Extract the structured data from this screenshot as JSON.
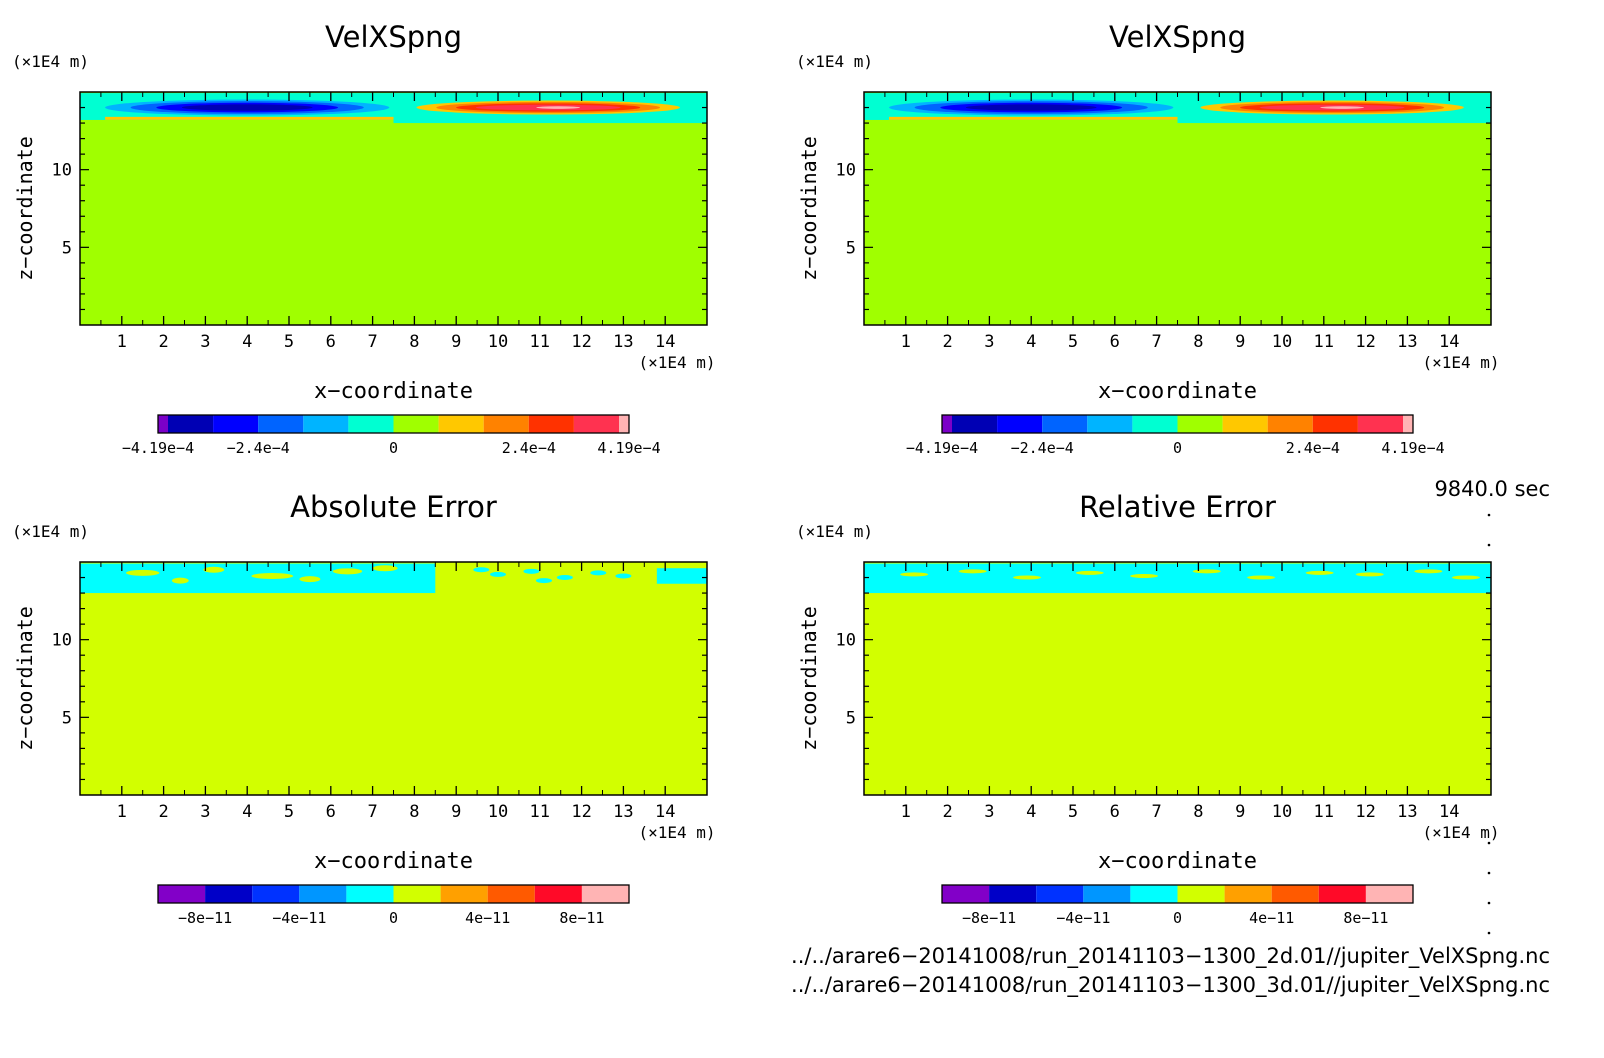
{
  "panels": [
    {
      "title": "VelXSpng",
      "kind": "field",
      "xlabel": "x−coordinate",
      "ylabel": "z−coordinate",
      "xunit": "(×1E4 m)",
      "yunit": "(×1E4 m)",
      "xticks": [
        "1",
        "2",
        "3",
        "4",
        "5",
        "6",
        "7",
        "8",
        "9",
        "10",
        "11",
        "12",
        "13",
        "14"
      ],
      "yticks": [
        "5",
        "10"
      ],
      "colorbar": {
        "colors": [
          "#7b00c8",
          "#0000b4",
          "#0000ff",
          "#0064ff",
          "#00b4ff",
          "#00ffd2",
          "#a0ff00",
          "#ffc800",
          "#ff8200",
          "#ff3200",
          "#ff3250",
          "#ffb4b4"
        ],
        "labels": [
          "−4.19e−4",
          "−2.4e−4",
          "0",
          "2.4e−4",
          "4.19e−4"
        ]
      }
    },
    {
      "title": "VelXSpng",
      "kind": "field",
      "xlabel": "x−coordinate",
      "ylabel": "z−coordinate",
      "xunit": "(×1E4 m)",
      "yunit": "(×1E4 m)",
      "xticks": [
        "1",
        "2",
        "3",
        "4",
        "5",
        "6",
        "7",
        "8",
        "9",
        "10",
        "11",
        "12",
        "13",
        "14"
      ],
      "yticks": [
        "5",
        "10"
      ],
      "colorbar": {
        "colors": [
          "#7b00c8",
          "#0000b4",
          "#0000ff",
          "#0064ff",
          "#00b4ff",
          "#00ffd2",
          "#a0ff00",
          "#ffc800",
          "#ff8200",
          "#ff3200",
          "#ff3250",
          "#ffb4b4"
        ],
        "labels": [
          "−4.19e−4",
          "−2.4e−4",
          "0",
          "2.4e−4",
          "4.19e−4"
        ]
      }
    },
    {
      "title": "Absolute Error",
      "kind": "abs_error",
      "xlabel": "x−coordinate",
      "ylabel": "z−coordinate",
      "xunit": "(×1E4 m)",
      "yunit": "(×1E4 m)",
      "xticks": [
        "1",
        "2",
        "3",
        "4",
        "5",
        "6",
        "7",
        "8",
        "9",
        "10",
        "11",
        "12",
        "13",
        "14"
      ],
      "yticks": [
        "5",
        "10"
      ],
      "colorbar": {
        "colors": [
          "#8200c8",
          "#0000c8",
          "#0032ff",
          "#0096ff",
          "#00ffff",
          "#d2ff00",
          "#ffa000",
          "#ff5a00",
          "#ff0a28",
          "#ffb4b4"
        ],
        "labels": [
          "−8e−11",
          "−4e−11",
          "0",
          "4e−11",
          "8e−11"
        ]
      }
    },
    {
      "title": "Relative Error",
      "kind": "rel_error",
      "xlabel": "x−coordinate",
      "ylabel": "z−coordinate",
      "xunit": "(×1E4 m)",
      "yunit": "(×1E4 m)",
      "xticks": [
        "1",
        "2",
        "3",
        "4",
        "5",
        "6",
        "7",
        "8",
        "9",
        "10",
        "11",
        "12",
        "13",
        "14"
      ],
      "yticks": [
        "5",
        "10"
      ],
      "colorbar": {
        "colors": [
          "#8200c8",
          "#0000c8",
          "#0032ff",
          "#0096ff",
          "#00ffff",
          "#d2ff00",
          "#ffa000",
          "#ff5a00",
          "#ff0a28",
          "#ffb4b4"
        ],
        "labels": [
          "−8e−11",
          "−4e−11",
          "0",
          "4e−11",
          "8e−11"
        ]
      }
    }
  ],
  "time_label": "9840.0 sec",
  "file_paths": [
    "../../arare6−20141008/run_20141103−1300_2d.01//jupiter_VelXSpng.nc",
    "../../arare6−20141008/run_20141103−1300_3d.01//jupiter_VelXSpng.nc"
  ],
  "chart_data": [
    {
      "type": "heatmap",
      "title": "VelXSpng",
      "xlabel": "x−coordinate",
      "ylabel": "z−coordinate",
      "xunit": "(×1E4 m)",
      "yunit": "(×1E4 m)",
      "xlim": [
        0,
        15
      ],
      "ylim": [
        0,
        15
      ],
      "colorbar_ticks": [
        -0.000419,
        -0.00024,
        0,
        0.00024,
        0.000419
      ],
      "background_value": 0,
      "features": [
        {
          "x_range": [
            0.5,
            7.5
          ],
          "z_range": [
            13.5,
            14.8
          ],
          "sign": "negative",
          "peak": -0.000419
        },
        {
          "x_range": [
            7.5,
            14.5
          ],
          "z_range": [
            13.2,
            14.8
          ],
          "sign": "positive",
          "peak": 0.000419
        }
      ]
    },
    {
      "type": "heatmap",
      "title": "VelXSpng",
      "xlabel": "x−coordinate",
      "ylabel": "z−coordinate",
      "xunit": "(×1E4 m)",
      "yunit": "(×1E4 m)",
      "xlim": [
        0,
        15
      ],
      "ylim": [
        0,
        15
      ],
      "colorbar_ticks": [
        -0.000419,
        -0.00024,
        0,
        0.00024,
        0.000419
      ],
      "background_value": 0,
      "features": [
        {
          "x_range": [
            0.5,
            7.5
          ],
          "z_range": [
            13.5,
            14.8
          ],
          "sign": "negative",
          "peak": -0.000419
        },
        {
          "x_range": [
            7.5,
            14.5
          ],
          "z_range": [
            13.2,
            14.8
          ],
          "sign": "positive",
          "peak": 0.000419
        }
      ]
    },
    {
      "type": "heatmap",
      "title": "Absolute Error",
      "xlabel": "x−coordinate",
      "ylabel": "z−coordinate",
      "xunit": "(×1E4 m)",
      "yunit": "(×1E4 m)",
      "xlim": [
        0,
        15
      ],
      "ylim": [
        0,
        15
      ],
      "colorbar_ticks": [
        -8e-11,
        -4e-11,
        0,
        4e-11,
        8e-11
      ],
      "background_value": 0
    },
    {
      "type": "heatmap",
      "title": "Relative Error",
      "xlabel": "x−coordinate",
      "ylabel": "z−coordinate",
      "xunit": "(×1E4 m)",
      "yunit": "(×1E4 m)",
      "xlim": [
        0,
        15
      ],
      "ylim": [
        0,
        15
      ],
      "colorbar_ticks": [
        -8e-11,
        -4e-11,
        0,
        4e-11,
        8e-11
      ],
      "background_value": 0
    }
  ]
}
